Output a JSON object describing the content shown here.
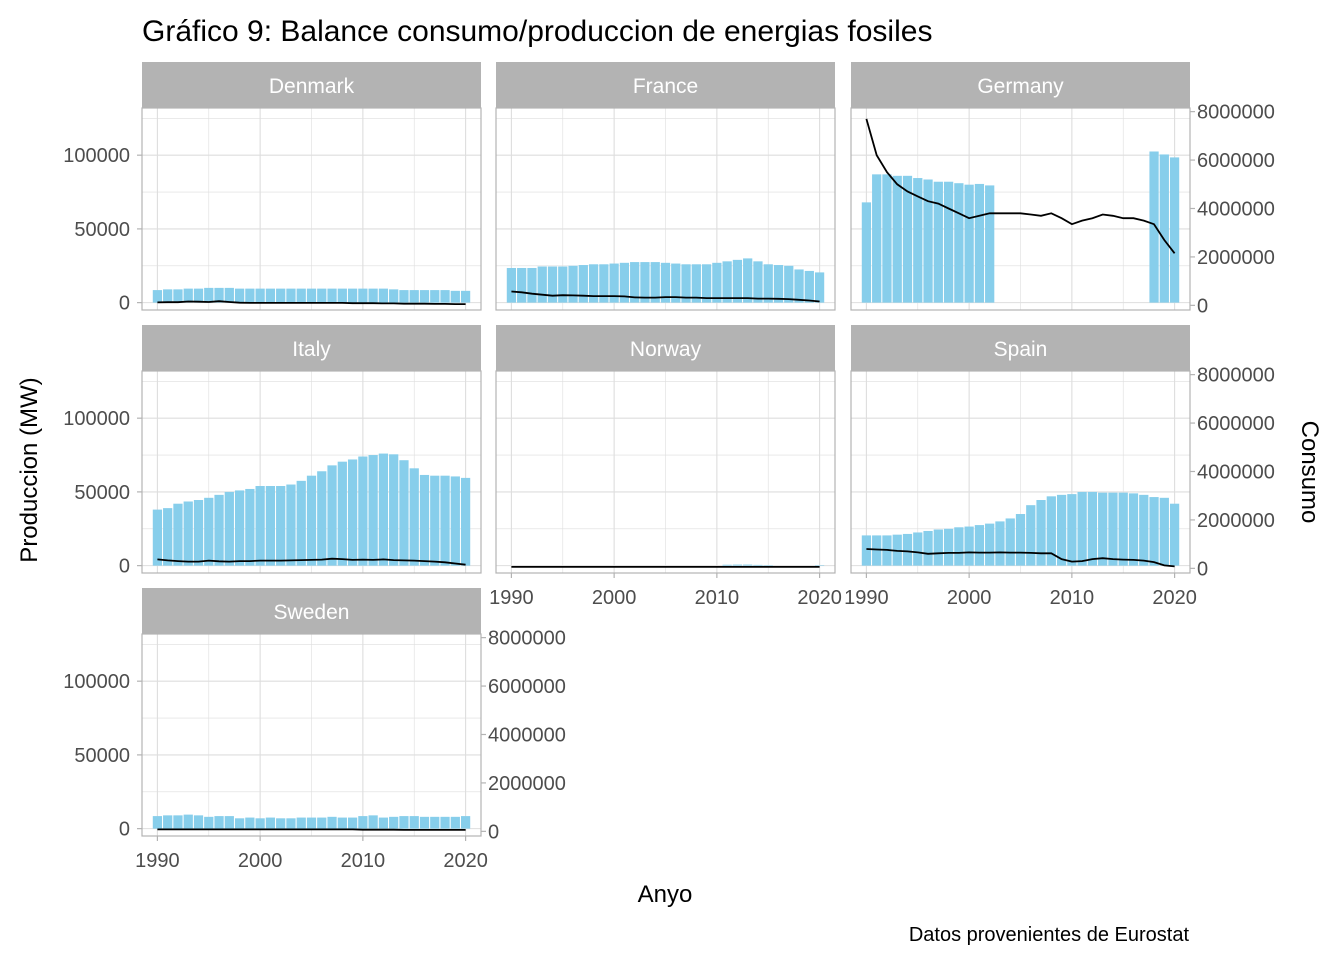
{
  "chart_data": {
    "type": "bar",
    "title": "Gráfico 9: Balance consumo/produccion de energias fosiles",
    "caption": "Datos provenientes de Eurostat",
    "xlabel": "Anyo",
    "ylabel": "Produccion (MW)",
    "ylabel_right": "Consumo",
    "x": [
      1990,
      1991,
      1992,
      1993,
      1994,
      1995,
      1996,
      1997,
      1998,
      1999,
      2000,
      2001,
      2002,
      2003,
      2004,
      2005,
      2006,
      2007,
      2008,
      2009,
      2010,
      2011,
      2012,
      2013,
      2014,
      2015,
      2016,
      2017,
      2018,
      2019,
      2020
    ],
    "xlim": [
      1988.5,
      2021.5
    ],
    "x_ticks": [
      "1990",
      "2000",
      "2010",
      "2020"
    ],
    "ylim": [
      -5000,
      132000
    ],
    "y_ticks": [
      "0",
      "50000",
      "100000"
    ],
    "y_tick_values": [
      0,
      50000,
      100000
    ],
    "ylim_right": [
      -192000,
      8150000
    ],
    "y_ticks_right": [
      "0",
      "2000000",
      "4000000",
      "6000000",
      "8000000"
    ],
    "y_tick_values_right": [
      0,
      2000000,
      4000000,
      6000000,
      8000000
    ],
    "grid": true,
    "colors": {
      "bar": "#87ceeb",
      "line": "#000000",
      "strip": "#b3b3b3",
      "grid": "#dedede",
      "border": "#b3b3b3",
      "axis_text": "#4d4d4d"
    },
    "panels": [
      {
        "name": "Denmark",
        "produccion": [
          8500,
          9000,
          9000,
          9500,
          9500,
          10000,
          10000,
          10000,
          9500,
          9500,
          9500,
          9500,
          9500,
          9500,
          9500,
          9500,
          9500,
          9500,
          9500,
          9500,
          9500,
          9500,
          9500,
          9000,
          8500,
          8500,
          8500,
          8500,
          8500,
          8000,
          8000
        ],
        "consumo": [
          120000,
          130000,
          130000,
          160000,
          150000,
          140000,
          170000,
          140000,
          110000,
          100000,
          100000,
          100000,
          100000,
          100000,
          100000,
          100000,
          100000,
          100000,
          100000,
          90000,
          90000,
          90000,
          80000,
          80000,
          70000,
          70000,
          70000,
          60000,
          60000,
          50000,
          50000
        ]
      },
      {
        "name": "France",
        "produccion": [
          23500,
          23500,
          23500,
          24500,
          24500,
          24500,
          25000,
          25500,
          26000,
          26000,
          26500,
          27000,
          27500,
          27500,
          27500,
          27000,
          26500,
          26000,
          26000,
          26000,
          27000,
          28000,
          29000,
          30000,
          28000,
          26000,
          25500,
          25000,
          22500,
          21500,
          20500
        ],
        "consumo": [
          570000,
          540000,
          480000,
          440000,
          400000,
          420000,
          410000,
          400000,
          380000,
          380000,
          380000,
          370000,
          330000,
          320000,
          320000,
          340000,
          340000,
          320000,
          320000,
          300000,
          300000,
          300000,
          300000,
          300000,
          280000,
          280000,
          270000,
          260000,
          230000,
          200000,
          160000
        ]
      },
      {
        "name": "Germany",
        "produccion": [
          68000,
          87000,
          87000,
          86000,
          86000,
          84500,
          83500,
          82000,
          82000,
          81000,
          80000,
          80500,
          79500,
          null,
          null,
          null,
          null,
          null,
          null,
          null,
          null,
          null,
          null,
          null,
          null,
          null,
          null,
          null,
          102500,
          100500,
          98500
        ],
        "consumo": [
          7700000,
          6200000,
          5500000,
          5000000,
          4700000,
          4500000,
          4300000,
          4200000,
          4000000,
          3800000,
          3600000,
          3700000,
          3800000,
          3800000,
          3800000,
          3800000,
          3750000,
          3700000,
          3800000,
          3600000,
          3350000,
          3500000,
          3600000,
          3750000,
          3700000,
          3600000,
          3600000,
          3500000,
          3350000,
          2700000,
          2150000
        ]
      },
      {
        "name": "Italy",
        "produccion": [
          38000,
          39000,
          42000,
          43500,
          44500,
          46000,
          48000,
          50000,
          51000,
          52000,
          54000,
          54000,
          54000,
          55000,
          57500,
          61000,
          64000,
          68000,
          70500,
          72000,
          74000,
          75000,
          76000,
          75500,
          71500,
          66000,
          61500,
          61000,
          61000,
          60500,
          59500
        ],
        "consumo": [
          370000,
          330000,
          300000,
          280000,
          280000,
          320000,
          290000,
          280000,
          300000,
          300000,
          320000,
          320000,
          320000,
          330000,
          340000,
          350000,
          360000,
          400000,
          380000,
          350000,
          360000,
          350000,
          370000,
          340000,
          330000,
          320000,
          300000,
          280000,
          250000,
          200000,
          150000
        ]
      },
      {
        "name": "Norway",
        "produccion": [
          0,
          0,
          0,
          0,
          0,
          0,
          0,
          0,
          0,
          0,
          0,
          0,
          0,
          0,
          0,
          0,
          0,
          0,
          0,
          0,
          0,
          600,
          700,
          700,
          500,
          300,
          0,
          0,
          0,
          0,
          300
        ],
        "consumo": [
          60000,
          60000,
          60000,
          60000,
          60000,
          60000,
          60000,
          60000,
          60000,
          60000,
          60000,
          60000,
          60000,
          60000,
          60000,
          60000,
          60000,
          60000,
          60000,
          60000,
          60000,
          60000,
          60000,
          60000,
          60000,
          60000,
          60000,
          60000,
          60000,
          60000,
          60000
        ]
      },
      {
        "name": "Spain",
        "produccion": [
          20500,
          20500,
          20500,
          21000,
          21500,
          22500,
          23500,
          24500,
          25000,
          26000,
          26500,
          27500,
          28500,
          30000,
          32000,
          35000,
          41000,
          44500,
          47000,
          48000,
          48500,
          50000,
          50000,
          49500,
          49500,
          49500,
          49000,
          48000,
          46500,
          46000,
          42000
        ],
        "consumo": [
          800000,
          780000,
          760000,
          720000,
          700000,
          660000,
          600000,
          620000,
          640000,
          640000,
          660000,
          650000,
          650000,
          660000,
          650000,
          650000,
          640000,
          620000,
          620000,
          380000,
          280000,
          300000,
          380000,
          420000,
          380000,
          360000,
          350000,
          320000,
          260000,
          120000,
          80000
        ]
      },
      {
        "name": "Sweden",
        "produccion": [
          8500,
          9000,
          9000,
          9500,
          9000,
          8000,
          8500,
          8500,
          7000,
          7500,
          7000,
          7500,
          7000,
          7000,
          7500,
          7500,
          7500,
          8000,
          7500,
          7500,
          8500,
          9000,
          7500,
          8000,
          8500,
          8500,
          8000,
          8000,
          8000,
          8000,
          8500
        ],
        "consumo": [
          80000,
          80000,
          80000,
          80000,
          80000,
          80000,
          80000,
          80000,
          80000,
          80000,
          80000,
          80000,
          80000,
          80000,
          80000,
          80000,
          80000,
          80000,
          80000,
          80000,
          70000,
          70000,
          70000,
          70000,
          60000,
          60000,
          60000,
          60000,
          60000,
          60000,
          60000
        ]
      }
    ]
  }
}
